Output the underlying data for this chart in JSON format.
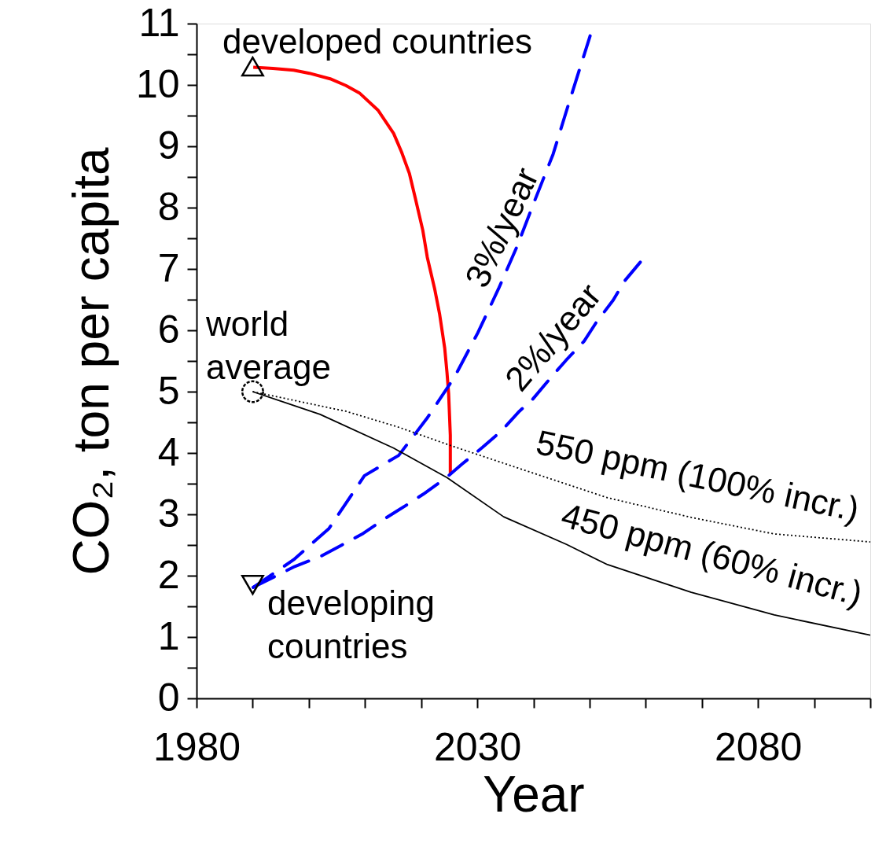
{
  "chart_data": {
    "type": "line",
    "xlabel": "Year",
    "ylabel": "CO₂, ton per capita",
    "xlim": [
      1980,
      2100
    ],
    "ylim": [
      0,
      11
    ],
    "xticks": [
      1980,
      {
        "value": 1990,
        "label": null
      },
      {
        "value": 2000,
        "label": null
      },
      {
        "value": 2010,
        "label": null
      },
      {
        "value": 2020,
        "label": null
      },
      2030,
      {
        "value": 2040,
        "label": null
      },
      {
        "value": 2050,
        "label": null
      },
      {
        "value": 2060,
        "label": null
      },
      {
        "value": 2070,
        "label": null
      },
      2080,
      {
        "value": 2090,
        "label": null
      },
      {
        "value": 2100,
        "label": null
      }
    ],
    "yticks": [
      0,
      {
        "value": 0.5,
        "label": null
      },
      1,
      {
        "value": 1.5,
        "label": null
      },
      2,
      {
        "value": 2.5,
        "label": null
      },
      3,
      {
        "value": 3.5,
        "label": null
      },
      4,
      {
        "value": 4.5,
        "label": null
      },
      5,
      {
        "value": 5.5,
        "label": null
      },
      6,
      {
        "value": 6.5,
        "label": null
      },
      7,
      {
        "value": 7.5,
        "label": null
      },
      8,
      {
        "value": 8.5,
        "label": null
      },
      9,
      {
        "value": 9.5,
        "label": null
      },
      10,
      {
        "value": 10.5,
        "label": null
      },
      11
    ],
    "grid": false,
    "series": [
      {
        "color": "#ff0000",
        "line_style": "solid",
        "x": [
          1990.1,
          1993.6,
          1997.3,
          2000.1,
          2003.8,
          2006.6,
          2009.0,
          2012.3,
          2015.1,
          2016.5,
          2017.9,
          2019.0,
          2020.3,
          2021.1,
          2022.4,
          2023.3,
          2024.2,
          2024.6,
          2024.9,
          2025.2,
          2025.2
        ],
        "values": [
          10.29,
          10.27,
          10.24,
          10.19,
          10.1,
          9.99,
          9.87,
          9.59,
          9.21,
          8.91,
          8.56,
          8.14,
          7.63,
          7.19,
          6.68,
          6.26,
          5.71,
          5.32,
          4.97,
          4.29,
          3.67
        ]
      },
      {
        "color": "#0000ff",
        "line_style": "dashed",
        "x": [
          1990.1,
          1997.3,
          2003.6,
          2009.9,
          2016.0,
          2021.0,
          2025.9,
          2030.1,
          2033.8,
          2037.1,
          2040.3,
          2043.5,
          2046.2,
          2050.1
        ],
        "values": [
          1.81,
          2.26,
          2.77,
          3.63,
          3.96,
          4.56,
          5.23,
          5.96,
          6.68,
          7.37,
          8.13,
          8.87,
          9.67,
          10.8
        ]
      },
      {
        "color": "#0000ff",
        "line_style": "dashed",
        "x": [
          1990.1,
          1997.5,
          2002.0,
          2005.9,
          2009.7,
          2013.2,
          2017.2,
          2020.4,
          2024.5,
          2027.3,
          2030.9,
          2034.3,
          2037.5,
          2039.9,
          2043.4,
          2045.8,
          2049.0,
          2051.2,
          2054.2,
          2056.2,
          2059.4
        ],
        "values": [
          1.81,
          2.15,
          2.31,
          2.5,
          2.69,
          2.91,
          3.14,
          3.33,
          3.6,
          3.82,
          4.09,
          4.36,
          4.68,
          4.88,
          5.26,
          5.51,
          5.82,
          6.13,
          6.49,
          6.8,
          7.15
        ]
      },
      {
        "color": "#000000",
        "line_style": "dotted",
        "x": [
          1990.0,
          2006.6,
          2016.0,
          2025.3,
          2038.4,
          2053.2,
          2068.1,
          2082.9,
          2100.0
        ],
        "values": [
          5.0,
          4.68,
          4.42,
          4.12,
          3.72,
          3.27,
          2.95,
          2.68,
          2.55
        ]
      },
      {
        "color": "#000000",
        "line_style": "solid",
        "x": [
          1990.0,
          2002.0,
          2015.1,
          2024.6,
          2034.7,
          2045.9,
          2053.2,
          2068.1,
          2082.9,
          2100.0
        ],
        "values": [
          5.0,
          4.63,
          4.08,
          3.6,
          2.96,
          2.51,
          2.18,
          1.73,
          1.36,
          1.03
        ]
      },
      {
        "type": "scatter",
        "color": "#000000",
        "marker": "triangle",
        "x": [
          1990
        ],
        "values": [
          10.3
        ]
      },
      {
        "type": "scatter",
        "color": "#000000",
        "marker": "circle",
        "line_style": "dashed",
        "x": [
          1990
        ],
        "values": [
          5.0
        ]
      },
      {
        "type": "scatter",
        "color": "#000000",
        "marker": "triangle-down",
        "x": [
          1990
        ],
        "values": [
          1.85
        ]
      }
    ],
    "annotations": [
      "developed countries",
      "world\naverage",
      "developing\ncountries",
      "3%/year",
      "2%/year",
      "550 ppm (100% incr.)",
      "450 ppm (60% incr.)"
    ]
  }
}
